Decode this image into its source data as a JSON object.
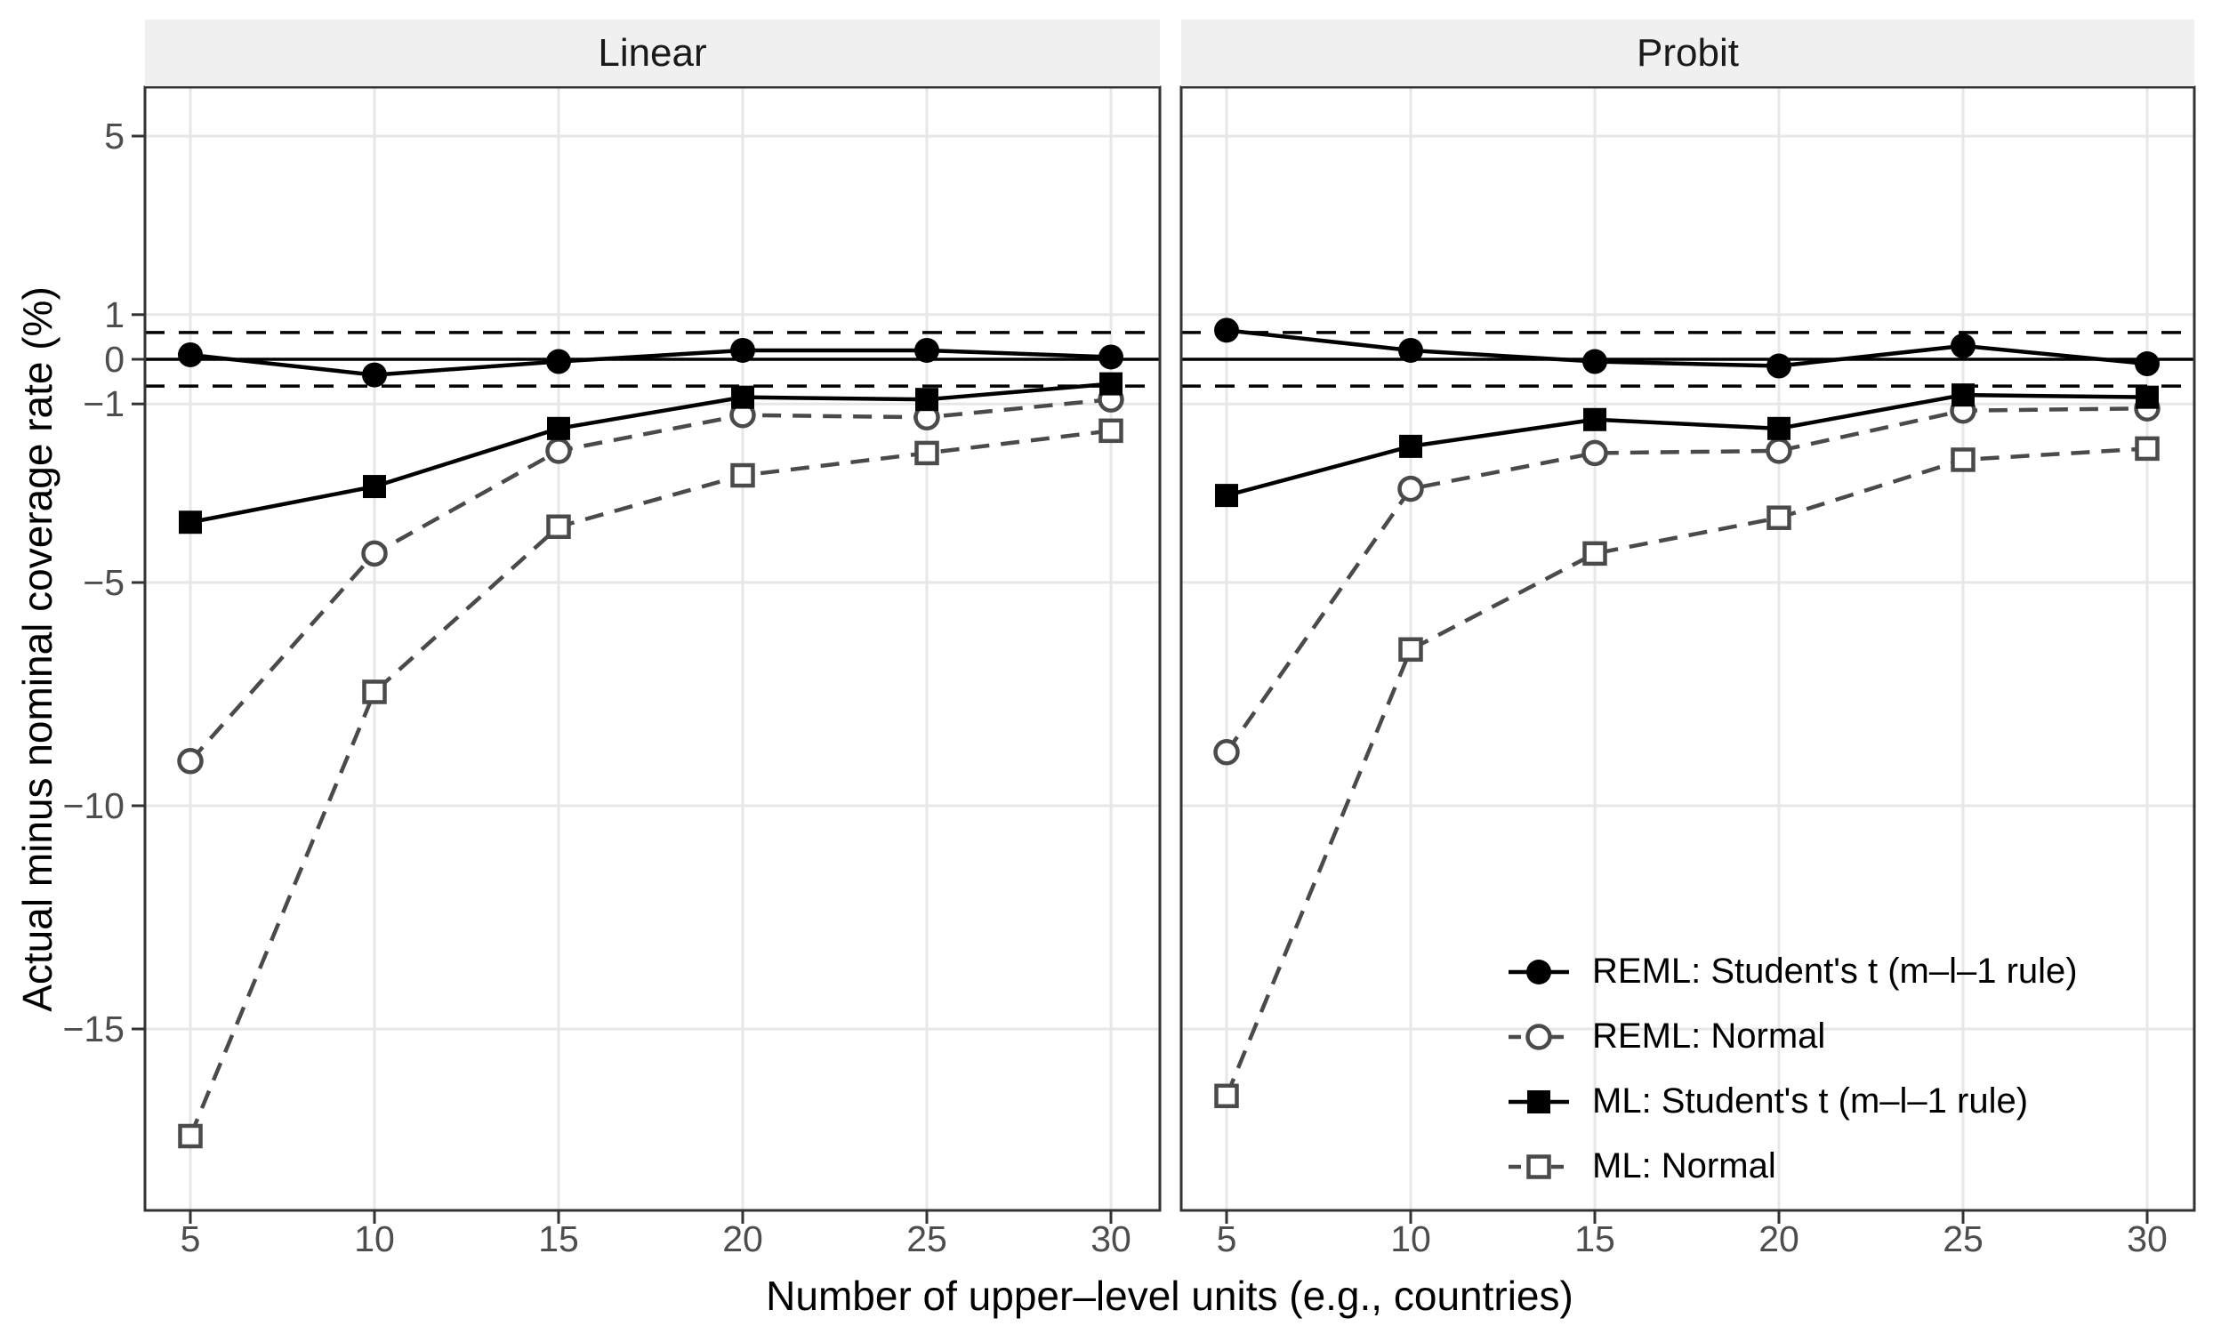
{
  "chart_data": {
    "type": "line",
    "xlabel": "Number of upper–level units (e.g., countries)",
    "ylabel": "Actual minus nominal coverage rate (%)",
    "x": [
      5,
      10,
      15,
      20,
      25,
      30
    ],
    "x_tick_labels": [
      "5",
      "10",
      "15",
      "20",
      "25",
      "30"
    ],
    "y_ticks": [
      {
        "value": 5,
        "label": "5"
      },
      {
        "value": 1,
        "label": "1"
      },
      {
        "value": 0,
        "label": "0"
      },
      {
        "value": -1,
        "label": "−1"
      },
      {
        "value": -5,
        "label": "−5"
      },
      {
        "value": -10,
        "label": "−10"
      },
      {
        "value": -15,
        "label": "−15"
      }
    ],
    "ylim": [
      -19.1,
      6.1
    ],
    "grid": "major-only",
    "reference_lines": {
      "solid_zero": 0,
      "dashed": [
        0.6,
        -0.6
      ]
    },
    "panels": [
      {
        "label": "Linear",
        "series": [
          {
            "name": "REML: Student's t (m–l–1 rule)",
            "marker": "filled-circle",
            "line": "solid",
            "color": "#000000",
            "values": [
              0.1,
              -0.35,
              -0.05,
              0.2,
              0.2,
              0.05
            ]
          },
          {
            "name": "REML: Normal",
            "marker": "open-circle",
            "line": "dashed",
            "color": "#4a4a4a",
            "values": [
              -9.0,
              -4.35,
              -2.05,
              -1.25,
              -1.3,
              -0.9
            ]
          },
          {
            "name": "ML: Student's t (m–l–1 rule)",
            "marker": "filled-square",
            "line": "solid",
            "color": "#000000",
            "values": [
              -3.65,
              -2.85,
              -1.55,
              -0.85,
              -0.9,
              -0.55
            ]
          },
          {
            "name": "ML: Normal",
            "marker": "open-square",
            "line": "dashed",
            "color": "#4a4a4a",
            "values": [
              -17.4,
              -7.45,
              -3.75,
              -2.6,
              -2.1,
              -1.6
            ]
          }
        ]
      },
      {
        "label": "Probit",
        "series": [
          {
            "name": "REML: Student's t (m–l–1 rule)",
            "marker": "filled-circle",
            "line": "solid",
            "color": "#000000",
            "values": [
              0.65,
              0.2,
              -0.05,
              -0.15,
              0.3,
              -0.1
            ]
          },
          {
            "name": "REML: Normal",
            "marker": "open-circle",
            "line": "dashed",
            "color": "#4a4a4a",
            "values": [
              -8.8,
              -2.9,
              -2.1,
              -2.05,
              -1.15,
              -1.1
            ]
          },
          {
            "name": "ML: Student's t (m–l–1 rule)",
            "marker": "filled-square",
            "line": "solid",
            "color": "#000000",
            "values": [
              -3.05,
              -1.95,
              -1.35,
              -1.55,
              -0.8,
              -0.85
            ]
          },
          {
            "name": "ML: Normal",
            "marker": "open-square",
            "line": "dashed",
            "color": "#4a4a4a",
            "values": [
              -16.5,
              -6.5,
              -4.35,
              -3.55,
              -2.25,
              -2.0
            ]
          }
        ]
      }
    ],
    "legend": {
      "position": "inside-bottom-right",
      "items": [
        {
          "label": "REML: Student's t (m–l–1 rule)",
          "marker": "filled-circle",
          "line": "solid",
          "color": "#000000"
        },
        {
          "label": "REML: Normal",
          "marker": "open-circle",
          "line": "dashed",
          "color": "#4a4a4a"
        },
        {
          "label": "ML: Student's t (m–l–1 rule)",
          "marker": "filled-square",
          "line": "solid",
          "color": "#000000"
        },
        {
          "label": "ML: Normal",
          "marker": "open-square",
          "line": "dashed",
          "color": "#4a4a4a"
        }
      ]
    }
  },
  "styles": {
    "background": "#ffffff",
    "panel_border": "#333333",
    "strip_bg": "#f0f0f0",
    "grid": "#e7e7e7",
    "tick_text": "#4d4d4d",
    "series_black": "#000000",
    "series_grey": "#4a4a4a"
  }
}
